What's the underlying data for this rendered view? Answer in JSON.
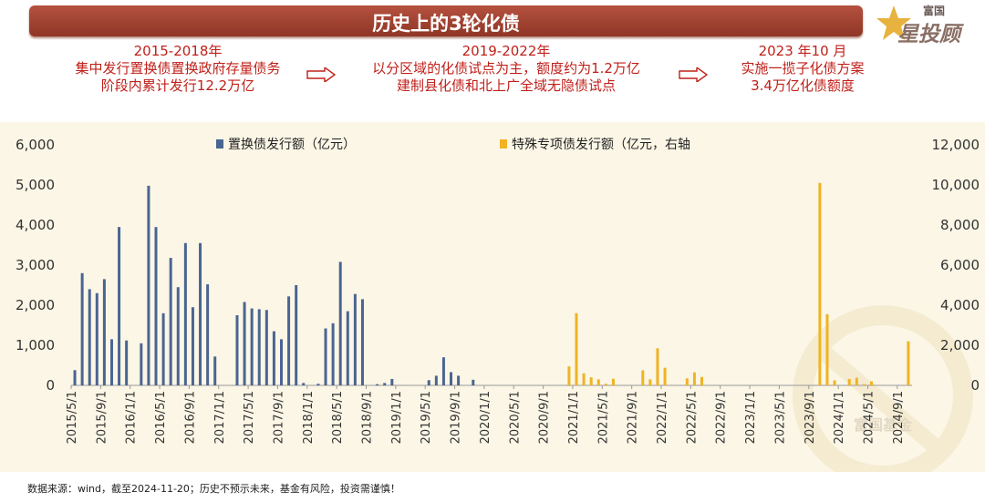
{
  "header": {
    "title": "历史上的3轮化债"
  },
  "logo": {
    "small": "富国",
    "big": "星投顾"
  },
  "stages": [
    {
      "year": "2015-2018年",
      "line1": "集中发行置换债置换政府存量债务",
      "line2": "阶段内累计发行12.2万亿"
    },
    {
      "year": "2019-2022年",
      "line1": "以分区域的化债试点为主，额度约为1.2万亿",
      "line2": "建制县化债和北上广全域无隐债试点"
    },
    {
      "year": "2023 年10 月",
      "line1": "实施一揽子化债方案",
      "line2": "3.4万亿化债额度"
    }
  ],
  "footer": "数据来源：wind，截至2024-11-20；历史不预示未来，基金有风险，投资需谨慎！",
  "watermark": "富国基金",
  "colors": {
    "banner": "#a3432f",
    "series_left": "#4a6592",
    "series_right": "#f0b323",
    "stage_text": "#c0201a"
  },
  "chart_data": {
    "type": "bar",
    "grid": false,
    "legend_position": "top",
    "x_start": "2015/5",
    "x_end": "2024/10",
    "x_tick_labels": [
      "2015/5/1",
      "2015/9/1",
      "2016/1/1",
      "2016/5/1",
      "2016/9/1",
      "2017/1/1",
      "2017/5/1",
      "2017/9/1",
      "2018/1/1",
      "2018/5/1",
      "2018/9/1",
      "2019/1/1",
      "2019/5/1",
      "2019/9/1",
      "2020/1/1",
      "2020/5/1",
      "2020/9/1",
      "2021/1/1",
      "2021/5/1",
      "2021/9/1",
      "2022/1/1",
      "2022/5/1",
      "2022/9/1",
      "2023/1/1",
      "2023/5/1",
      "2023/9/1",
      "2024/1/1",
      "2024/5/1",
      "2024/9/1"
    ],
    "y_left": {
      "ylim": [
        0,
        6000
      ],
      "ticks": [
        "0",
        "1,000",
        "2,000",
        "3,000",
        "4,000",
        "5,000",
        "6,000"
      ]
    },
    "y_right": {
      "ylim": [
        0,
        12000
      ],
      "ticks": [
        "0",
        "2,000",
        "4,000",
        "6,000",
        "8,000",
        "10,000",
        "12,000"
      ]
    },
    "series": [
      {
        "name": "置换债发行额（亿元）",
        "axis": "left",
        "points": [
          [
            "2015/5",
            380
          ],
          [
            "2015/6",
            2800
          ],
          [
            "2015/7",
            2400
          ],
          [
            "2015/8",
            2300
          ],
          [
            "2015/9",
            2650
          ],
          [
            "2015/10",
            1150
          ],
          [
            "2015/11",
            3950
          ],
          [
            "2015/12",
            1120
          ],
          [
            "2016/2",
            1050
          ],
          [
            "2016/3",
            4980
          ],
          [
            "2016/4",
            3950
          ],
          [
            "2016/5",
            1800
          ],
          [
            "2016/6",
            3180
          ],
          [
            "2016/7",
            2450
          ],
          [
            "2016/8",
            3550
          ],
          [
            "2016/9",
            1950
          ],
          [
            "2016/10",
            3550
          ],
          [
            "2016/11",
            2520
          ],
          [
            "2016/12",
            720
          ],
          [
            "2017/3",
            1750
          ],
          [
            "2017/4",
            2080
          ],
          [
            "2017/5",
            1920
          ],
          [
            "2017/6",
            1900
          ],
          [
            "2017/7",
            1880
          ],
          [
            "2017/8",
            1350
          ],
          [
            "2017/9",
            1150
          ],
          [
            "2017/10",
            2220
          ],
          [
            "2017/11",
            2500
          ],
          [
            "2017/12",
            60
          ],
          [
            "2018/2",
            40
          ],
          [
            "2018/3",
            1420
          ],
          [
            "2018/4",
            1550
          ],
          [
            "2018/5",
            3080
          ],
          [
            "2018/6",
            1850
          ],
          [
            "2018/7",
            2280
          ],
          [
            "2018/8",
            2150
          ],
          [
            "2018/10",
            30
          ],
          [
            "2018/11",
            60
          ],
          [
            "2018/12",
            160
          ],
          [
            "2019/5",
            130
          ],
          [
            "2019/6",
            240
          ],
          [
            "2019/7",
            700
          ],
          [
            "2019/8",
            330
          ],
          [
            "2019/9",
            240
          ],
          [
            "2019/11",
            140
          ]
        ]
      },
      {
        "name": "特殊专项债发行额（亿元，右轴",
        "axis": "right",
        "points": [
          [
            "2020/12",
            950
          ],
          [
            "2021/1",
            3600
          ],
          [
            "2021/2",
            600
          ],
          [
            "2021/3",
            400
          ],
          [
            "2021/4",
            300
          ],
          [
            "2021/5",
            80
          ],
          [
            "2021/6",
            330
          ],
          [
            "2021/10",
            750
          ],
          [
            "2021/11",
            300
          ],
          [
            "2021/12",
            1850
          ],
          [
            "2022/1",
            880
          ],
          [
            "2022/4",
            350
          ],
          [
            "2022/5",
            650
          ],
          [
            "2022/6",
            420
          ],
          [
            "2023/10",
            10100
          ],
          [
            "2023/11",
            3550
          ],
          [
            "2023/12",
            250
          ],
          [
            "2024/2",
            320
          ],
          [
            "2024/3",
            380
          ],
          [
            "2024/4",
            60
          ],
          [
            "2024/5",
            200
          ],
          [
            "2024/10",
            2200
          ]
        ]
      }
    ]
  }
}
